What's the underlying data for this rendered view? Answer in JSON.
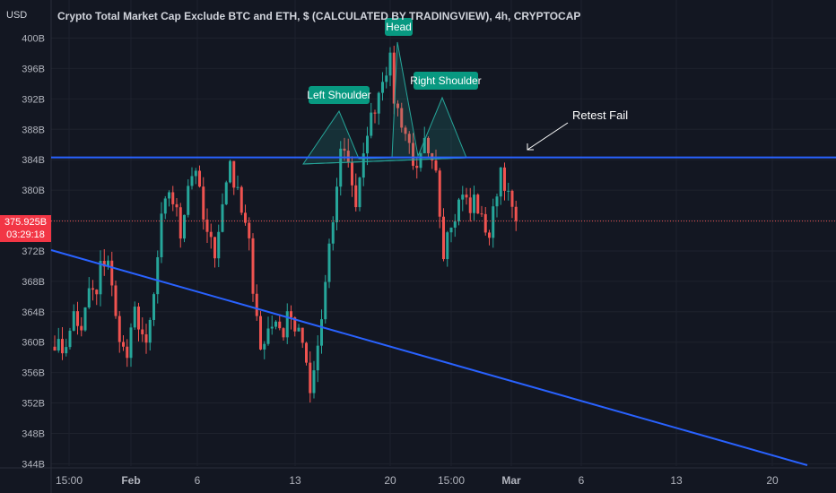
{
  "header": {
    "currency": "USD",
    "title": "Crypto Total Market Cap Exclude BTC and ETH, $ (CALCULATED BY TRADINGVIEW), 4h, CRYPTOCAP"
  },
  "price_badge": {
    "price": "375.925B",
    "countdown": "03:29:18",
    "color": "#f23645"
  },
  "colors": {
    "background": "#131722",
    "up": "#26a69a",
    "down": "#ef5350",
    "trendline": "#2962ff",
    "pattern": "#26a69a",
    "annotation_bg": "#089981"
  },
  "annotations": {
    "left_shoulder": "Left Shoulder",
    "head": "Head",
    "right_shoulder": "Right Shoulder",
    "retest": "Retest Fail"
  },
  "chart_data": {
    "type": "candlestick",
    "title": "Crypto Total Market Cap Exclude BTC and ETH, $ (CALCULATED BY TRADINGVIEW), 4h, CRYPTOCAP",
    "ylabel": "USD",
    "ylim": [
      344,
      402
    ],
    "y_ticks": [
      "400B",
      "396B",
      "392B",
      "388B",
      "384B",
      "380B",
      "376B",
      "372B",
      "368B",
      "364B",
      "360B",
      "356B",
      "352B",
      "348B",
      "344B"
    ],
    "y_tick_values": [
      400,
      396,
      392,
      388,
      384,
      380,
      376,
      372,
      368,
      364,
      360,
      356,
      352,
      348,
      344
    ],
    "x_ticks": [
      "15:00",
      "Feb",
      "6",
      "13",
      "20",
      "15:00",
      "Mar",
      "6",
      "13",
      "20"
    ],
    "current_price": 375.925,
    "close_path": [
      [
        0,
        360
      ],
      [
        2,
        359
      ],
      [
        4,
        361
      ],
      [
        5,
        364
      ],
      [
        7,
        361
      ],
      [
        9,
        367
      ],
      [
        11,
        366
      ],
      [
        12,
        370
      ],
      [
        14,
        371
      ],
      [
        16,
        363
      ],
      [
        18,
        359
      ],
      [
        19,
        358
      ],
      [
        21,
        364
      ],
      [
        23,
        361
      ],
      [
        24,
        359
      ],
      [
        26,
        366
      ],
      [
        28,
        376
      ],
      [
        30,
        380
      ],
      [
        32,
        377
      ],
      [
        33,
        374
      ],
      [
        35,
        381
      ],
      [
        37,
        383
      ],
      [
        39,
        376
      ],
      [
        40,
        374
      ],
      [
        42,
        372
      ],
      [
        44,
        378
      ],
      [
        46,
        384
      ],
      [
        47,
        381
      ],
      [
        49,
        378
      ],
      [
        51,
        374
      ],
      [
        52,
        366
      ],
      [
        54,
        359
      ],
      [
        56,
        362
      ],
      [
        58,
        363
      ],
      [
        60,
        361
      ],
      [
        61,
        364
      ],
      [
        63,
        362
      ],
      [
        65,
        360
      ],
      [
        67,
        353
      ],
      [
        68,
        356
      ],
      [
        70,
        363
      ],
      [
        72,
        372
      ],
      [
        74,
        380
      ],
      [
        75,
        386
      ],
      [
        77,
        384
      ],
      [
        79,
        378
      ],
      [
        81,
        384
      ],
      [
        82,
        388
      ],
      [
        84,
        391
      ],
      [
        86,
        395
      ],
      [
        88,
        397
      ],
      [
        89,
        392
      ],
      [
        91,
        389
      ],
      [
        93,
        386
      ],
      [
        95,
        382
      ],
      [
        97,
        386
      ],
      [
        98,
        384
      ],
      [
        100,
        382
      ],
      [
        102,
        372
      ],
      [
        103,
        375
      ],
      [
        105,
        377
      ],
      [
        107,
        380
      ],
      [
        109,
        377
      ],
      [
        110,
        379
      ],
      [
        112,
        376
      ],
      [
        114,
        374
      ],
      [
        116,
        380
      ],
      [
        117,
        383
      ],
      [
        119,
        379
      ],
      [
        121,
        376
      ]
    ],
    "trendlines": [
      {
        "name": "horizontal-resistance",
        "points": [
          [
            0,
            384.3
          ],
          [
            200,
            384.3
          ]
        ]
      },
      {
        "name": "descending-support",
        "points": [
          [
            0,
            372.1
          ],
          [
            190,
            344
          ]
        ]
      }
    ]
  }
}
